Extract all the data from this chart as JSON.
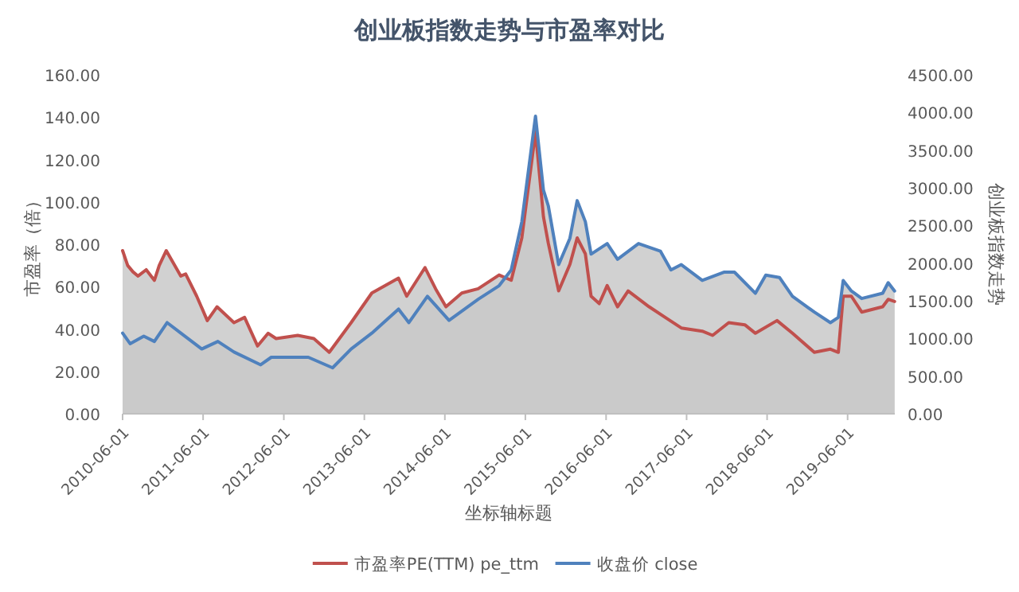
{
  "chart_data": {
    "type": "area",
    "title": "创业板指数走势与市盈率对比",
    "xlabel": "坐标轴标题",
    "ylabel": "市盈率（倍）",
    "y2label": "创业板指数走势",
    "legend": "bottom",
    "line_style": "solid",
    "xlim": [
      "2010-06-01",
      "2020-01-01"
    ],
    "xticks": [
      "2010-06-01",
      "2011-06-01",
      "2012-06-01",
      "2013-06-01",
      "2014-06-01",
      "2015-06-01",
      "2016-06-01",
      "2017-06-01",
      "2018-06-01",
      "2019-06-01"
    ],
    "ylim": [
      0,
      160
    ],
    "yticks": [
      {
        "value": 0,
        "label": "0.00"
      },
      {
        "value": 20,
        "label": "20.00"
      },
      {
        "value": 40,
        "label": "40.00"
      },
      {
        "value": 60,
        "label": "60.00"
      },
      {
        "value": 80,
        "label": "80.00"
      },
      {
        "value": 100,
        "label": "100.00"
      },
      {
        "value": 120,
        "label": "120.00"
      },
      {
        "value": 140,
        "label": "140.00"
      },
      {
        "value": 160,
        "label": "160.00"
      }
    ],
    "y2lim": [
      0,
      4500
    ],
    "y2ticks": [
      {
        "value": 0,
        "label": "0.00"
      },
      {
        "value": 500,
        "label": "500.00"
      },
      {
        "value": 1000,
        "label": "1000.00"
      },
      {
        "value": 1500,
        "label": "1500.00"
      },
      {
        "value": 2000,
        "label": "2000.00"
      },
      {
        "value": 2500,
        "label": "2500.00"
      },
      {
        "value": 3000,
        "label": "3000.00"
      },
      {
        "value": 3500,
        "label": "3500.00"
      },
      {
        "value": 4000,
        "label": "4000.00"
      },
      {
        "value": 4500,
        "label": "4500.00"
      }
    ],
    "series": [
      {
        "name": "市盈率PE(TTM) pe_ttm",
        "color": "#c0504d",
        "axis": "y",
        "x": [
          "2010-06-01",
          "2010-06-24",
          "2010-07-18",
          "2010-08-10",
          "2010-09-16",
          "2010-10-23",
          "2010-11-14",
          "2010-12-16",
          "2011-02-20",
          "2011-03-14",
          "2011-05-03",
          "2011-06-20",
          "2011-08-03",
          "2011-10-19",
          "2011-12-06",
          "2012-02-03",
          "2012-03-22",
          "2012-04-27",
          "2012-08-03",
          "2012-10-15",
          "2012-12-24",
          "2013-04-02",
          "2013-07-05",
          "2013-11-03",
          "2013-12-10",
          "2014-03-03",
          "2014-04-20",
          "2014-06-06",
          "2014-08-17",
          "2014-10-30",
          "2015-02-02",
          "2015-03-29",
          "2015-05-16",
          "2015-07-17",
          "2015-08-22",
          "2015-09-13",
          "2015-10-30",
          "2015-12-20",
          "2016-01-22",
          "2016-02-28",
          "2016-03-25",
          "2016-05-01",
          "2016-06-06",
          "2016-07-23",
          "2016-09-09",
          "2016-12-13",
          "2017-02-24",
          "2017-05-08",
          "2017-08-11",
          "2017-09-27",
          "2017-12-09",
          "2018-02-20",
          "2018-04-09",
          "2018-07-16",
          "2018-09-24",
          "2019-01-01",
          "2019-03-15",
          "2019-04-20",
          "2019-05-12",
          "2019-06-18",
          "2019-08-04",
          "2019-11-07",
          "2019-12-02",
          "2019-12-31"
        ],
        "values": [
          77,
          70,
          67,
          65,
          68,
          63,
          70,
          77,
          65,
          66,
          55.5,
          44,
          50.5,
          43,
          45.5,
          32,
          38,
          35.5,
          37,
          35.5,
          29,
          43,
          57,
          64,
          55.5,
          69,
          59,
          50.5,
          57,
          59,
          65.5,
          63,
          83,
          133,
          93,
          80.5,
          58,
          70.5,
          83,
          75.5,
          55.5,
          52,
          60.5,
          50.5,
          58,
          50.5,
          45.5,
          40.5,
          39,
          37,
          43,
          42,
          38,
          44,
          38,
          29,
          30.5,
          29,
          55.5,
          55.5,
          48,
          50.5,
          54,
          53
        ]
      },
      {
        "name": "收盘价 close",
        "color": "#4f81bd",
        "axis": "y2",
        "x": [
          "2010-06-01",
          "2010-07-05",
          "2010-09-05",
          "2010-10-23",
          "2010-12-20",
          "2011-02-20",
          "2011-05-26",
          "2011-08-07",
          "2011-10-19",
          "2012-02-17",
          "2012-04-05",
          "2012-09-20",
          "2013-01-08",
          "2013-04-02",
          "2013-07-05",
          "2013-11-03",
          "2013-12-20",
          "2014-03-14",
          "2014-06-20",
          "2014-10-30",
          "2015-02-02",
          "2015-03-29",
          "2015-05-16",
          "2015-07-17",
          "2015-08-22",
          "2015-09-13",
          "2015-10-30",
          "2015-12-20",
          "2016-01-22",
          "2016-02-28",
          "2016-03-25",
          "2016-06-06",
          "2016-07-23",
          "2016-10-26",
          "2017-02-02",
          "2017-03-22",
          "2017-05-08",
          "2017-08-11",
          "2017-11-17",
          "2018-01-04",
          "2018-04-09",
          "2018-05-26",
          "2018-07-27",
          "2018-09-24",
          "2019-01-01",
          "2019-03-15",
          "2019-04-20",
          "2019-05-12",
          "2019-06-18",
          "2019-08-04",
          "2019-11-07",
          "2019-12-02",
          "2019-12-31"
        ],
        "values": [
          1070,
          930,
          1030,
          960,
          1210,
          1070,
          860,
          960,
          820,
          650,
          750,
          750,
          610,
          860,
          1070,
          1390,
          1210,
          1560,
          1240,
          1520,
          1700,
          1910,
          2550,
          3950,
          2970,
          2760,
          1980,
          2330,
          2830,
          2550,
          2120,
          2260,
          2050,
          2260,
          2160,
          1910,
          1980,
          1770,
          1880,
          1880,
          1600,
          1840,
          1810,
          1560,
          1350,
          1210,
          1280,
          1770,
          1630,
          1530,
          1600,
          1740,
          1630
        ]
      }
    ]
  }
}
